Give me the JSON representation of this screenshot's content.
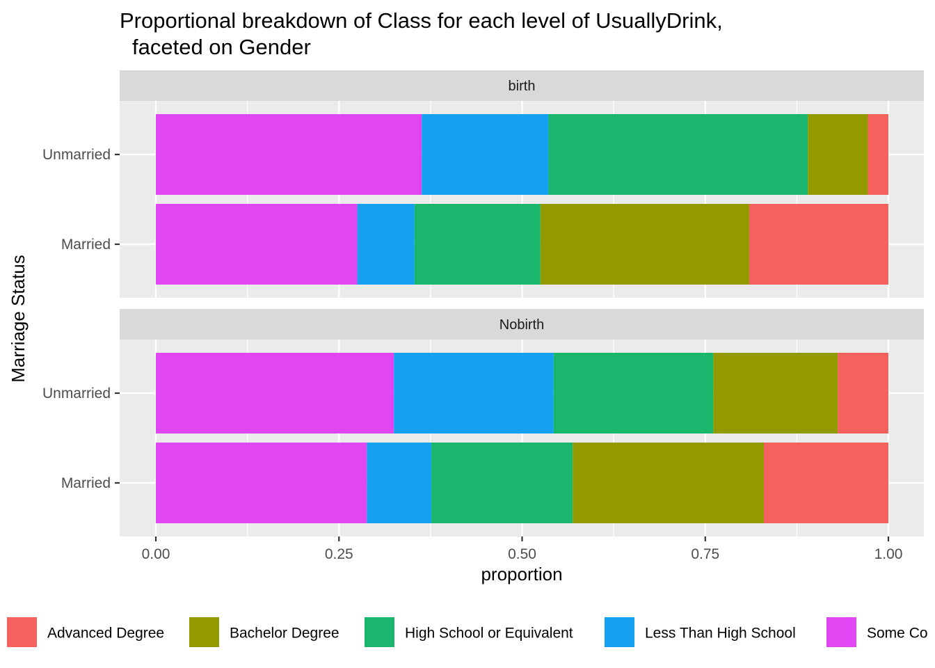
{
  "chart_data": {
    "type": "bar",
    "orientation": "horizontal",
    "stacked": "proportion",
    "title_line1": "Proportional breakdown of Class for each level of UsuallyDrink,",
    "title_line2": "faceted on Gender",
    "xlabel": "proportion",
    "ylabel": "Marriage Status",
    "xlim": [
      0,
      1
    ],
    "x_ticks": [
      "0.00",
      "0.25",
      "0.50",
      "0.75",
      "1.00"
    ],
    "x_tick_values": [
      0,
      0.25,
      0.5,
      0.75,
      1.0
    ],
    "categories": [
      "Unmarried",
      "Married"
    ],
    "legend_position": "bottom",
    "series": [
      {
        "name": "Some College",
        "color": "#E046F2"
      },
      {
        "name": "Less Than High School",
        "color": "#16A0F1"
      },
      {
        "name": "High School or Equivalent",
        "color": "#1AB66E"
      },
      {
        "name": "Bachelor Degree",
        "color": "#939A00"
      },
      {
        "name": "Advanced Degree",
        "color": "#F5615C"
      }
    ],
    "legend_order": [
      "Advanced Degree",
      "Bachelor Degree",
      "High School or Equivalent",
      "Less Than High School",
      "Some College"
    ],
    "legend_visible_text": [
      "Advanced Degree",
      "Bachelor Degree",
      "High School or Equivalent",
      "Less Than High School",
      "Some Co"
    ],
    "facets": [
      {
        "label": "birth",
        "rows": [
          {
            "category": "Unmarried",
            "values": [
              0.363,
              0.173,
              0.354,
              0.082,
              0.028
            ]
          },
          {
            "category": "Married",
            "values": [
              0.275,
              0.078,
              0.172,
              0.285,
              0.19
            ]
          }
        ]
      },
      {
        "label": "Nobirth",
        "rows": [
          {
            "category": "Unmarried",
            "values": [
              0.325,
              0.218,
              0.218,
              0.17,
              0.069
            ]
          },
          {
            "category": "Married",
            "values": [
              0.288,
              0.088,
              0.193,
              0.261,
              0.17
            ]
          }
        ]
      }
    ]
  }
}
